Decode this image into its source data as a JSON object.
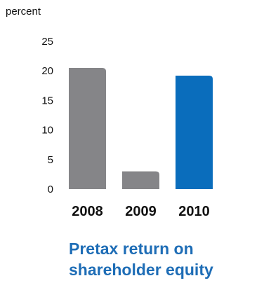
{
  "chart_data": {
    "type": "bar",
    "ylabel": "percent",
    "ylim": [
      0,
      25
    ],
    "yticks": [
      0,
      5,
      10,
      15,
      20,
      25
    ],
    "categories": [
      "2008",
      "2009",
      "2010"
    ],
    "values": [
      20.5,
      3.0,
      19.2
    ],
    "bar_colors": [
      "#858588",
      "#858588",
      "#0a6dbc"
    ]
  },
  "caption": {
    "line1": "Pretax return on",
    "line2": "shareholder equity"
  }
}
